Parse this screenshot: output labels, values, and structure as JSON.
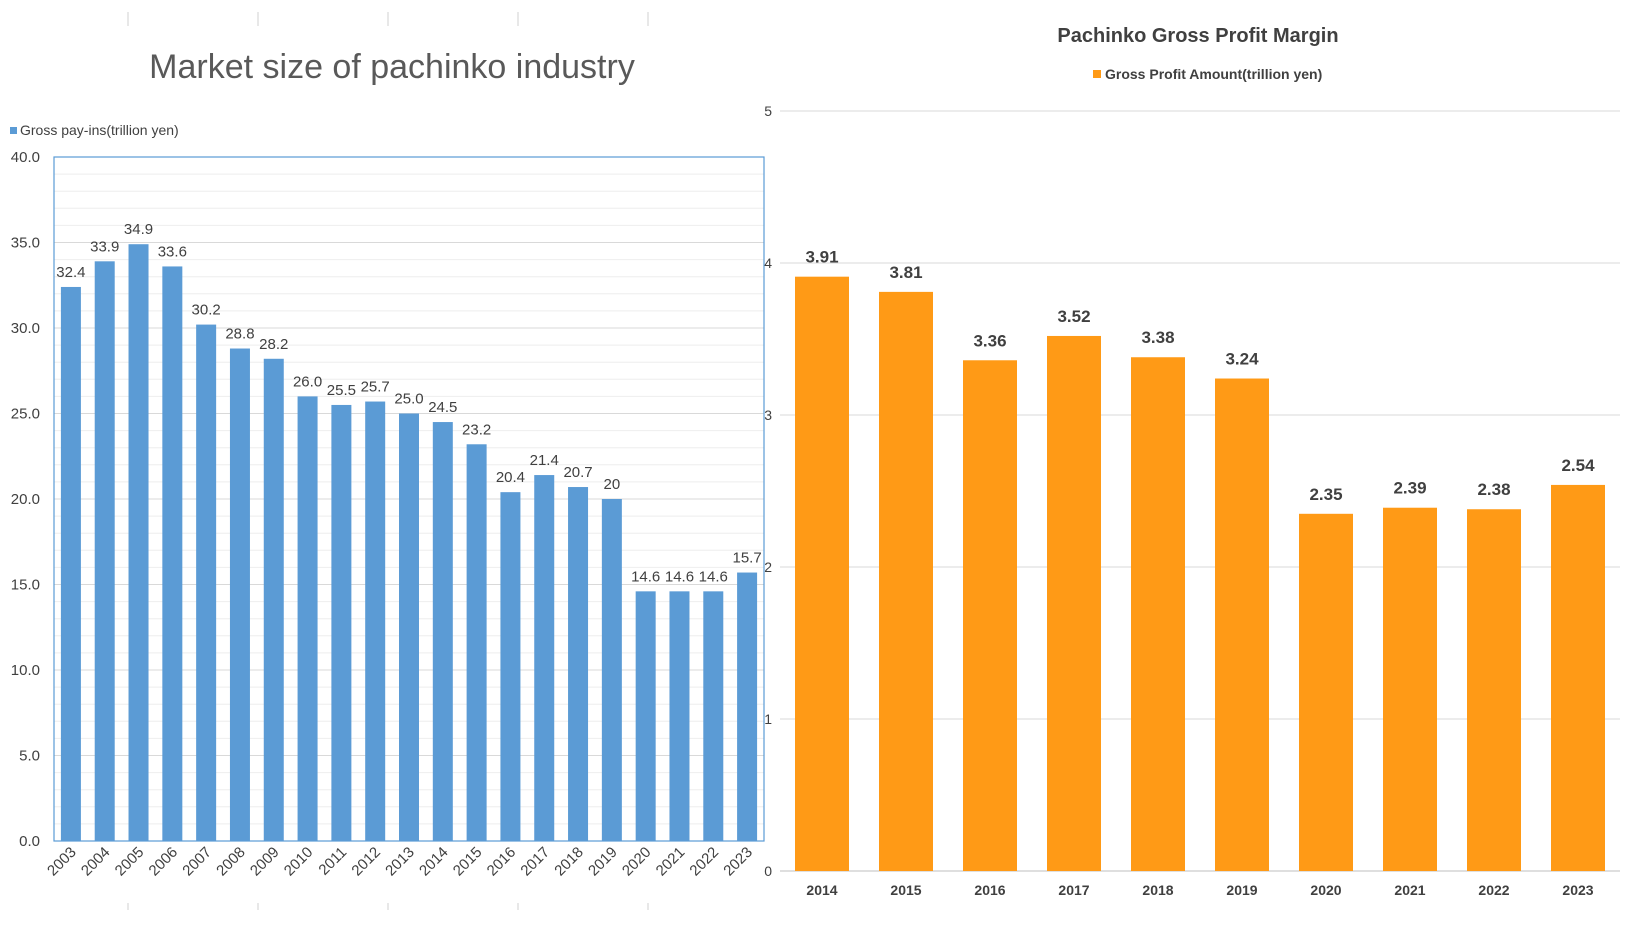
{
  "chart_data": [
    {
      "type": "bar",
      "title": "Market size of pachinko industry",
      "legend": {
        "label": "Gross pay-ins(trillion yen)",
        "position": "top-left"
      },
      "xlabel": "",
      "ylabel": "",
      "ylim": [
        0,
        40
      ],
      "yticks": [
        "0.0",
        "5.0",
        "10.0",
        "15.0",
        "20.0",
        "25.0",
        "30.0",
        "35.0",
        "40.0"
      ],
      "categories": [
        "2003",
        "2004",
        "2005",
        "2006",
        "2007",
        "2008",
        "2009",
        "2010",
        "2011",
        "2012",
        "2013",
        "2014",
        "2015",
        "2016",
        "2017",
        "2018",
        "2019",
        "2020",
        "2021",
        "2022",
        "2023"
      ],
      "values": [
        32.4,
        33.9,
        34.9,
        33.6,
        30.2,
        28.8,
        28.2,
        26.0,
        25.5,
        25.7,
        25.0,
        24.5,
        23.2,
        20.4,
        21.4,
        20.7,
        20,
        14.6,
        14.6,
        14.6,
        15.7
      ],
      "labels": [
        "32.4",
        "33.9",
        "34.9",
        "33.6",
        "30.2",
        "28.8",
        "28.2",
        "26.0",
        "25.5",
        "25.7",
        "25.0",
        "24.5",
        "23.2",
        "20.4",
        "21.4",
        "20.7",
        "20",
        "14.6",
        "14.6",
        "14.6",
        "15.7"
      ],
      "color": "#5b9bd5",
      "grid": true
    },
    {
      "type": "bar",
      "title": "Pachinko Gross Profit Margin",
      "legend": {
        "label": "Gross Profit Amount(trillion yen)",
        "position": "top-center"
      },
      "xlabel": "",
      "ylabel": "",
      "ylim": [
        0,
        5
      ],
      "yticks": [
        "0",
        "1",
        "2",
        "3",
        "4",
        "5"
      ],
      "categories": [
        "2014",
        "2015",
        "2016",
        "2017",
        "2018",
        "2019",
        "2020",
        "2021",
        "2022",
        "2023"
      ],
      "values": [
        3.91,
        3.81,
        3.36,
        3.52,
        3.38,
        3.24,
        2.35,
        2.39,
        2.38,
        2.54
      ],
      "labels": [
        "3.91",
        "3.81",
        "3.36",
        "3.52",
        "3.38",
        "3.24",
        "2.35",
        "2.39",
        "2.38",
        "2.54"
      ],
      "color": "#ff9a16",
      "grid": true
    }
  ]
}
